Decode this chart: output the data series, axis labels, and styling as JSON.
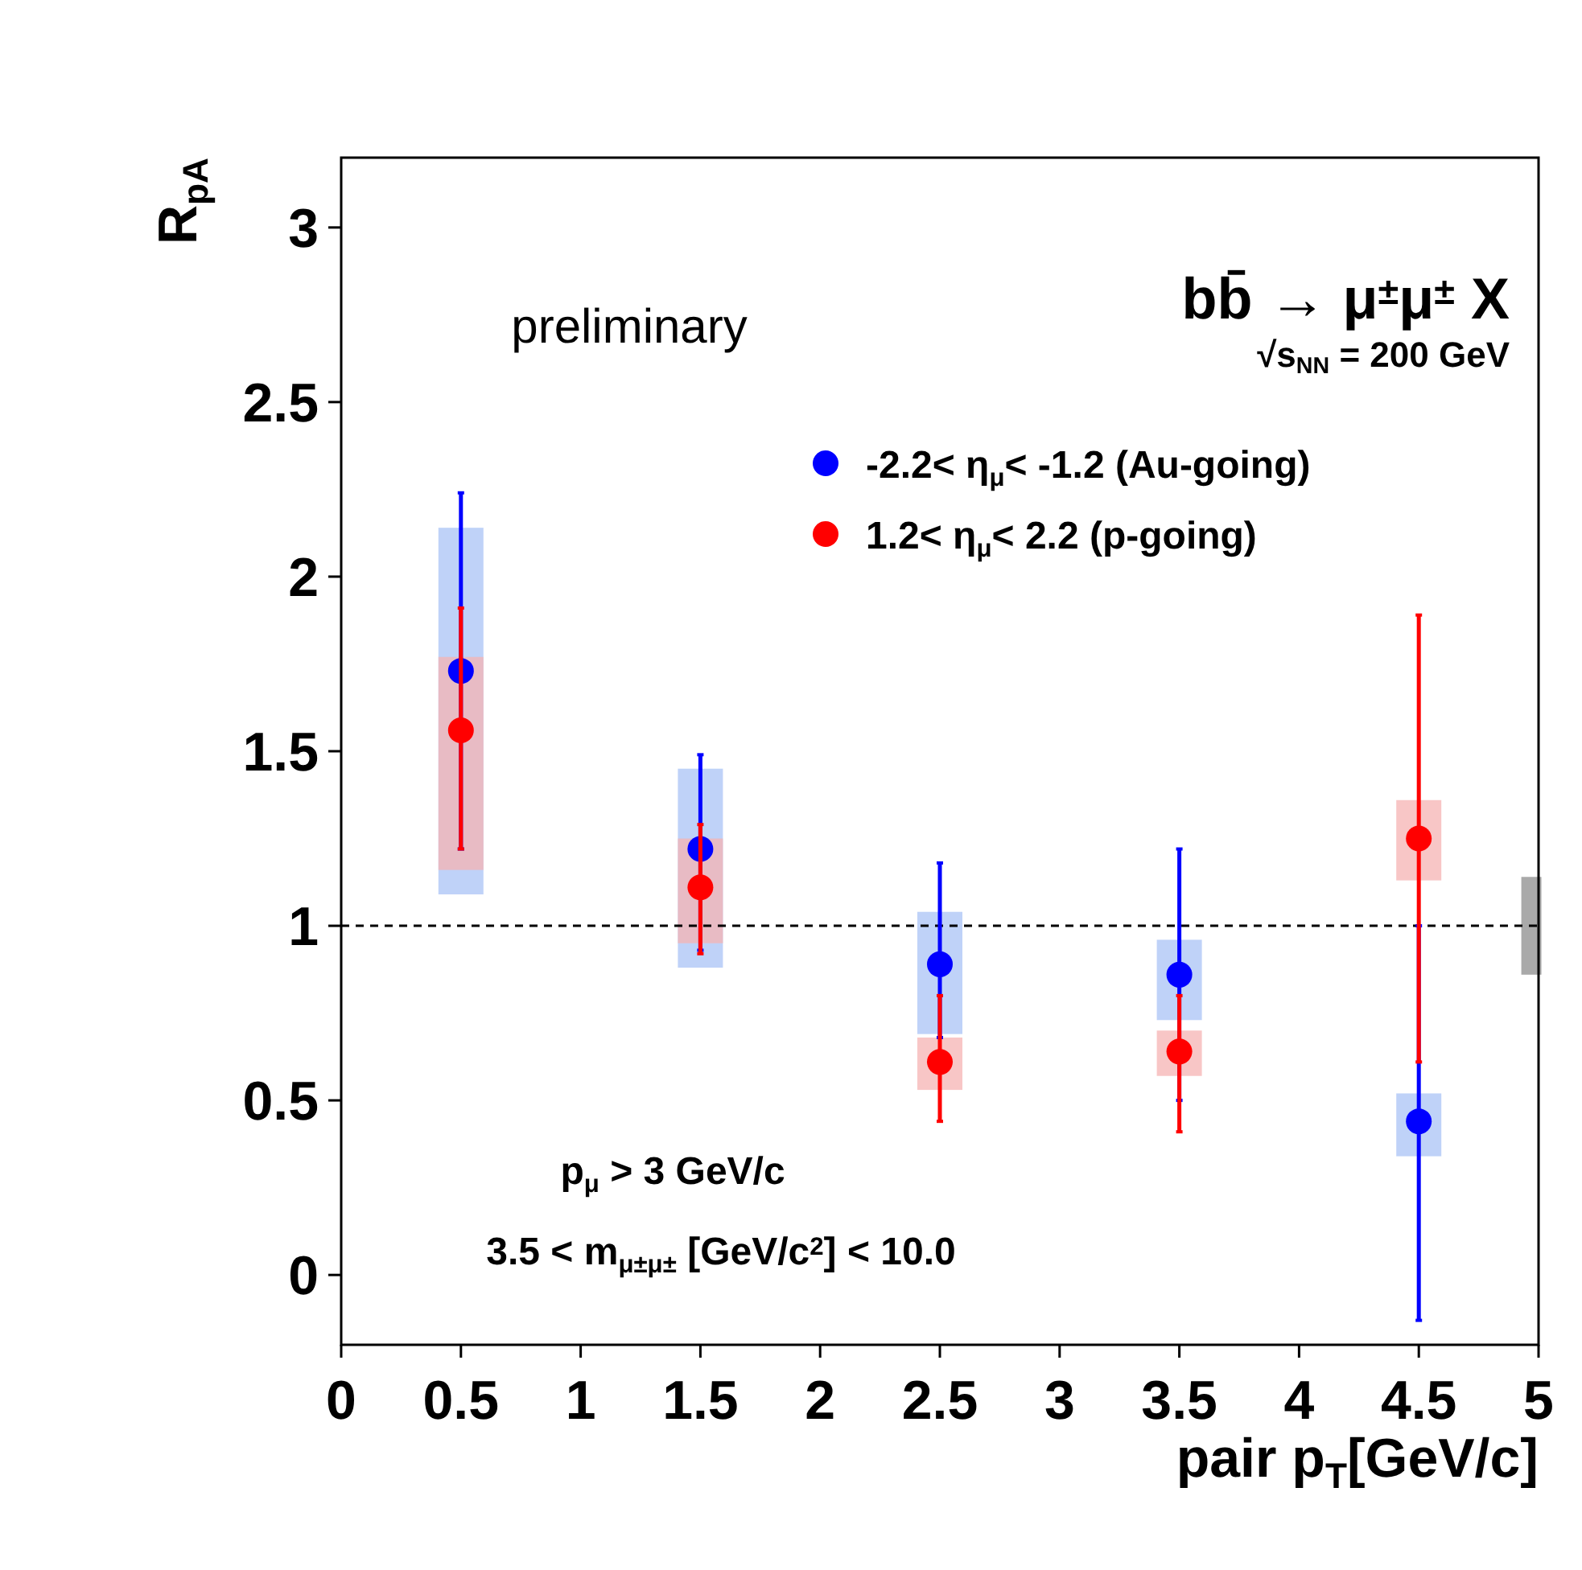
{
  "chart_data": {
    "type": "scatter",
    "xlabel": "pair p$_{T}$[GeV/c]",
    "ylabel": "R$_{pA}$",
    "xlim": [
      0,
      5
    ],
    "xticks": [
      0,
      0.5,
      1,
      1.5,
      2,
      2.5,
      3,
      3.5,
      4,
      4.5,
      5
    ],
    "ylim": [
      -0.2,
      3.2
    ],
    "yticks": [
      0,
      0.5,
      1,
      1.5,
      2,
      2.5,
      3
    ],
    "grid": false,
    "legend": "top right",
    "marker": "circle",
    "ref_lines": [
      {
        "axis": "y",
        "value": 1,
        "line_style": "dashed",
        "color": "#000000"
      }
    ],
    "series": [
      {
        "type": "bar",
        "color": "#a9c3f5",
        "x": [
          0.5,
          1.5,
          2.5,
          3.5,
          4.5
        ],
        "base": [
          1.09,
          0.88,
          0.69,
          0.73,
          0.34
        ],
        "values": [
          1.05,
          0.57,
          0.35,
          0.23,
          0.18
        ]
      },
      {
        "type": "bar",
        "color": "#f5b3b3",
        "x": [
          0.5,
          1.5,
          2.5,
          3.5,
          4.5
        ],
        "base": [
          1.16,
          0.95,
          0.53,
          0.57,
          1.13
        ],
        "values": [
          0.61,
          0.3,
          0.15,
          0.13,
          0.23
        ]
      },
      {
        "type": "bar",
        "color": "#8c8c8c",
        "x": [
          4.97
        ],
        "base": [
          0.86
        ],
        "values": [
          0.28
        ]
      },
      {
        "name": "-2.2< η$_{μ}$< -1.2 (Au-going)",
        "color": "#0000ff",
        "x": [
          0.5,
          1.5,
          2.5,
          3.5,
          4.5
        ],
        "values": [
          1.73,
          1.22,
          0.89,
          0.86,
          0.44
        ],
        "errors": [
          [
            1.22,
            2.24
          ],
          [
            0.93,
            1.49
          ],
          [
            0.68,
            1.18
          ],
          [
            0.5,
            1.22
          ],
          [
            -0.13,
            1.0
          ]
        ]
      },
      {
        "name": "1.2< η$_{μ}$< 2.2 (p-going)",
        "color": "#ff0000",
        "x": [
          0.5,
          1.5,
          2.5,
          3.5,
          4.5
        ],
        "values": [
          1.56,
          1.11,
          0.61,
          0.64,
          1.25
        ],
        "errors": [
          [
            1.22,
            1.91
          ],
          [
            0.92,
            1.29
          ],
          [
            0.44,
            0.8
          ],
          [
            0.41,
            0.8
          ],
          [
            0.61,
            1.89
          ]
        ]
      }
    ],
    "annotations": [
      "preliminary",
      "bb̄ → μ$^{±}$μ$^{±}$ X",
      "√s$_{NN}$ = 200 GeV",
      "p$_{μ}$ > 3 GeV/c",
      "3.5 < m$_{μ±μ±}$ [GeV/c$^{2}$] < 10.0"
    ]
  }
}
